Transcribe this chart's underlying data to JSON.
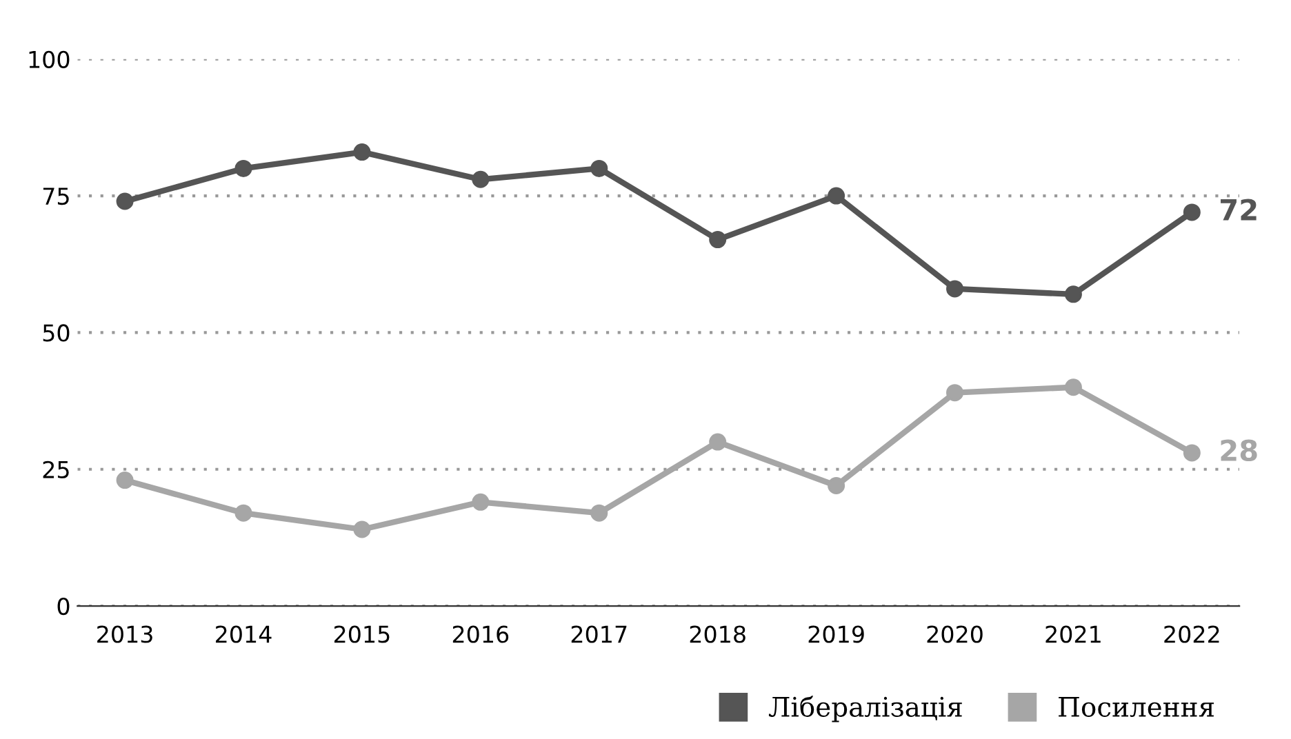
{
  "chart_data": {
    "type": "line",
    "categories": [
      "2013",
      "2014",
      "2015",
      "2016",
      "2017",
      "2018",
      "2019",
      "2020",
      "2021",
      "2022"
    ],
    "series": [
      {
        "name": "Лібералізація",
        "color": "#555555",
        "values": [
          74,
          80,
          83,
          78,
          80,
          67,
          75,
          58,
          57,
          72
        ],
        "value_labels": [
          null,
          null,
          null,
          null,
          null,
          null,
          null,
          null,
          null,
          "72"
        ]
      },
      {
        "name": "Посилення",
        "color": "#a6a6a6",
        "values": [
          23,
          17,
          14,
          19,
          17,
          30,
          22,
          39,
          40,
          28
        ],
        "value_labels": [
          null,
          null,
          null,
          null,
          null,
          null,
          null,
          null,
          null,
          "28"
        ]
      }
    ],
    "ylim": [
      0,
      100
    ],
    "yticks": [
      0,
      25,
      50,
      75,
      100
    ],
    "grid": "y",
    "legend": "bottom right",
    "marker": "circle",
    "line_style": "solid"
  }
}
